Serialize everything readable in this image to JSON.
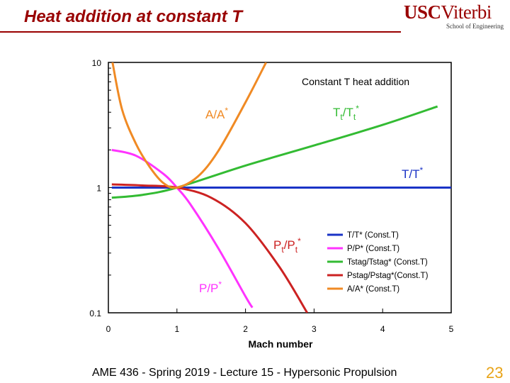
{
  "slide": {
    "title": "Heat addition at constant T",
    "logo_usc": "USC",
    "logo_name": "Viterbi",
    "logo_sub": "School of Engineering",
    "footer": "AME 436 - Spring 2019 - Lecture 15 - Hypersonic Propulsion",
    "page_number": "23"
  },
  "chart_data": {
    "type": "line",
    "title": "Constant T heat addition",
    "xlabel": "Mach number",
    "ylabel": "",
    "xlim": [
      0,
      5
    ],
    "ylim": [
      0.1,
      10
    ],
    "yscale": "log",
    "grid": false,
    "xticks": [
      "0",
      "1",
      "2",
      "3",
      "4",
      "5"
    ],
    "yticks": [
      "0.1",
      "1",
      "10"
    ],
    "legend_position": "bottom-right",
    "series": [
      {
        "name": "T/T* (Const.T)",
        "color": "#1a33c6",
        "x": [
          0.05,
          5
        ],
        "y": [
          1.0,
          1.0
        ]
      },
      {
        "name": "P/P* (Const.T)",
        "color": "#ff33ff",
        "x": [
          0.05,
          0.4,
          0.8,
          1.0,
          1.2,
          1.6,
          2.0,
          2.1
        ],
        "y": [
          2.0,
          1.8,
          1.29,
          1.0,
          0.73,
          0.33,
          0.135,
          0.11
        ]
      },
      {
        "name": "Tstag/Tstag* (Const.T)",
        "color": "#33bb33",
        "x": [
          0.05,
          0.5,
          1.0,
          2.0,
          3.0,
          4.0,
          4.8
        ],
        "y": [
          0.83,
          0.875,
          1.0,
          1.5,
          2.17,
          3.17,
          4.45
        ]
      },
      {
        "name": "Pstag/Pstag*(Const.T)",
        "color": "#cc2222",
        "x": [
          0.05,
          0.5,
          1.0,
          1.5,
          2.0,
          2.5,
          2.9
        ],
        "y": [
          1.06,
          1.04,
          1.0,
          0.83,
          0.52,
          0.23,
          0.1
        ]
      },
      {
        "name": "A/A* (Const.T)",
        "color": "#f08a24",
        "x": [
          0.06,
          0.2,
          0.4,
          0.6,
          0.8,
          1.0,
          1.3,
          1.6,
          2.0,
          2.3
        ],
        "y": [
          10.0,
          4.2,
          2.25,
          1.47,
          1.09,
          1.0,
          1.22,
          1.95,
          4.8,
          10.0
        ]
      }
    ],
    "annotations": [
      {
        "text": "A/A*",
        "color": "#f08a24",
        "base": "A/A",
        "sup": "*"
      },
      {
        "text": "Tt/Tt*",
        "color": "#33bb33",
        "base": "T",
        "sub": "t",
        "base2": "/T",
        "sub2": "t",
        "sup": "*"
      },
      {
        "text": "T/T*",
        "color": "#1a33c6",
        "base": "T/T",
        "sup": "*"
      },
      {
        "text": "Pt/Pt*",
        "color": "#cc2222",
        "base": "P",
        "sub": "t",
        "base2": "/P",
        "sub2": "t",
        "sup": "*"
      },
      {
        "text": "P/P*",
        "color": "#ff33ff",
        "base": "P/P",
        "sup": "*"
      }
    ]
  }
}
